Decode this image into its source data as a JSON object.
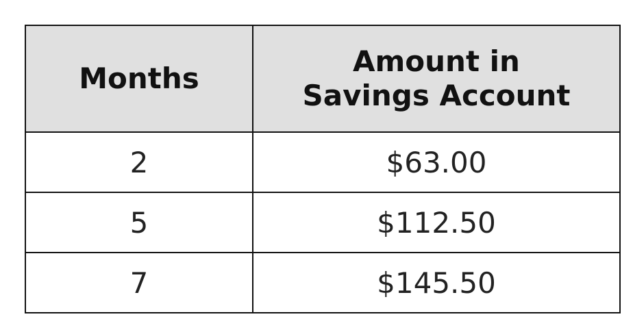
{
  "chart_data": {
    "type": "table",
    "headers": [
      "Months",
      "Amount in Savings Account"
    ],
    "header_lines": [
      [
        "Months"
      ],
      [
        "Amount in",
        "Savings Account"
      ]
    ],
    "rows": [
      [
        "2",
        "$63.00"
      ],
      [
        "5",
        "$112.50"
      ],
      [
        "7",
        "$145.50"
      ]
    ]
  }
}
